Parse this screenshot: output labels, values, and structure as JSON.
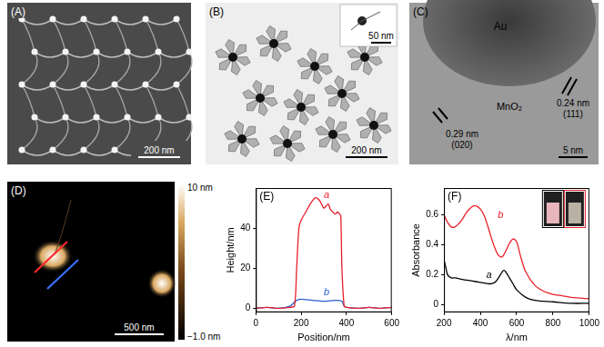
{
  "panels": [
    {
      "label": "(A)",
      "scale_bar": "200 nm"
    },
    {
      "label": "(B)",
      "scale_bar": "200 nm",
      "inset_scale_bar": "50 nm"
    },
    {
      "label": "(C)",
      "regions": [
        "Au",
        "MnO₂"
      ],
      "lattice_fringes": [
        {
          "spacing": "0.24 nm",
          "plane": "(111)"
        },
        {
          "spacing": "0.29 nm",
          "plane": "(020)"
        }
      ],
      "scale_bar": "5 nm"
    },
    {
      "label": "(D)",
      "scale_bar": "500 nm",
      "colorbar": {
        "range": [
          -1.0,
          10
        ],
        "ticks": [
          {
            "value": 10,
            "label": "10 nm"
          },
          {
            "value": -1.0,
            "label": "−1.0 nm"
          }
        ]
      }
    }
  ],
  "chart_data": [
    {
      "panel": "(E)",
      "type": "line",
      "x_label": "Position/nm",
      "y_label": "Height/nm",
      "xlim": [
        0,
        600
      ],
      "xticks": [
        0,
        200,
        400,
        600
      ],
      "ylim": [
        -2,
        60
      ],
      "yticks": [
        0,
        20,
        40
      ],
      "grid": false,
      "series": [
        {
          "name": "a",
          "color": "#e8202a",
          "x": [
            0,
            50,
            100,
            150,
            170,
            180,
            190,
            200,
            220,
            240,
            260,
            270,
            280,
            290,
            300,
            310,
            320,
            330,
            340,
            350,
            360,
            370,
            375,
            380,
            390,
            400,
            450,
            500,
            550,
            600
          ],
          "values": [
            0,
            0.5,
            0,
            0.5,
            1,
            20,
            40,
            44,
            48,
            52,
            55,
            55,
            54,
            52,
            50,
            51,
            52,
            49,
            48,
            47,
            48,
            47,
            46,
            20,
            1,
            0.5,
            0,
            0.5,
            0,
            0.5
          ]
        },
        {
          "name": "b",
          "color": "#2a5fd0",
          "x": [
            0,
            50,
            100,
            150,
            170,
            180,
            200,
            250,
            300,
            350,
            380,
            390,
            400,
            450,
            500,
            550,
            600
          ],
          "values": [
            0,
            0.5,
            0,
            1,
            3,
            4,
            4.5,
            4,
            3.5,
            4,
            3.5,
            1,
            0.5,
            0,
            0.5,
            0,
            0.5
          ]
        }
      ]
    },
    {
      "panel": "(F)",
      "type": "line",
      "x_label": "λ/nm",
      "y_label": "Absorbance",
      "xlim": [
        200,
        1000
      ],
      "xticks": [
        200,
        400,
        600,
        800,
        1000
      ],
      "ylim": [
        -0.05,
        0.78
      ],
      "yticks": [
        0,
        0.2,
        0.4,
        0.6
      ],
      "grid": false,
      "series": [
        {
          "name": "a",
          "color": "#000000",
          "x": [
            200,
            210,
            220,
            240,
            260,
            300,
            350,
            400,
            450,
            480,
            500,
            520,
            530,
            540,
            560,
            580,
            600,
            650,
            700,
            800,
            900,
            1000
          ],
          "values": [
            0.3,
            0.25,
            0.2,
            0.18,
            0.18,
            0.17,
            0.16,
            0.15,
            0.14,
            0.15,
            0.18,
            0.22,
            0.23,
            0.22,
            0.18,
            0.14,
            0.1,
            0.05,
            0.03,
            0.02,
            0.01,
            0.01
          ]
        },
        {
          "name": "b",
          "color": "#e8202a",
          "x": [
            200,
            220,
            240,
            260,
            280,
            300,
            320,
            340,
            360,
            380,
            400,
            420,
            440,
            460,
            480,
            500,
            520,
            540,
            560,
            580,
            600,
            620,
            650,
            700,
            750,
            800,
            850,
            900,
            950,
            1000
          ],
          "values": [
            0.6,
            0.55,
            0.52,
            0.52,
            0.54,
            0.57,
            0.61,
            0.64,
            0.66,
            0.66,
            0.64,
            0.6,
            0.53,
            0.45,
            0.38,
            0.33,
            0.32,
            0.36,
            0.41,
            0.44,
            0.42,
            0.33,
            0.22,
            0.13,
            0.09,
            0.07,
            0.06,
            0.05,
            0.045,
            0.04
          ]
        }
      ]
    }
  ]
}
